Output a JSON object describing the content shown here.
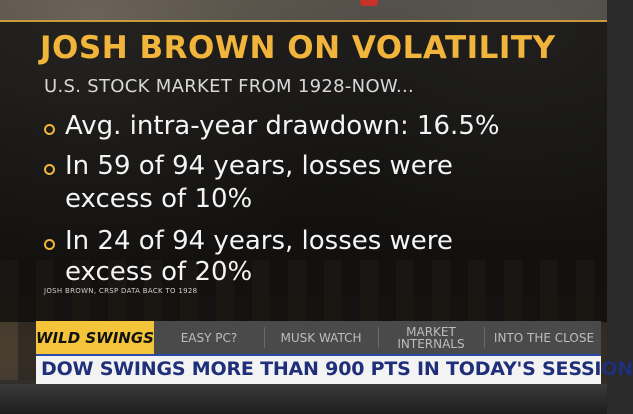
{
  "title": "JOSH BROWN ON VOLATILITY",
  "subtitle": "U.S. STOCK MARKET FROM 1928-NOW...",
  "bullets": [
    {
      "line1": "Avg. intra-year drawdown: 16.5%",
      "line2": ""
    },
    {
      "line1": "In 59 of 94 years, losses were",
      "line2": "excess of 10%"
    },
    {
      "line1": "In 24 of 94 years, losses were",
      "line2": "excess of 20%"
    }
  ],
  "source": "JOSH BROWN, CRSP DATA BACK TO 1928",
  "ticker": {
    "tabs": [
      {
        "label": "WILD SWINGS"
      },
      {
        "label": "EASY PC?"
      },
      {
        "label": "MUSK WATCH"
      },
      {
        "label": "MARKET INTERNALS"
      },
      {
        "label": "INTO THE CLOSE"
      }
    ],
    "headline": "DOW SWINGS MORE THAN 900 PTS IN TODAY'S SESSION"
  },
  "colors": {
    "title_gold": "#f2b53b",
    "active_tab": "#f4c53a",
    "headline_navy": "#1f2f7a"
  }
}
